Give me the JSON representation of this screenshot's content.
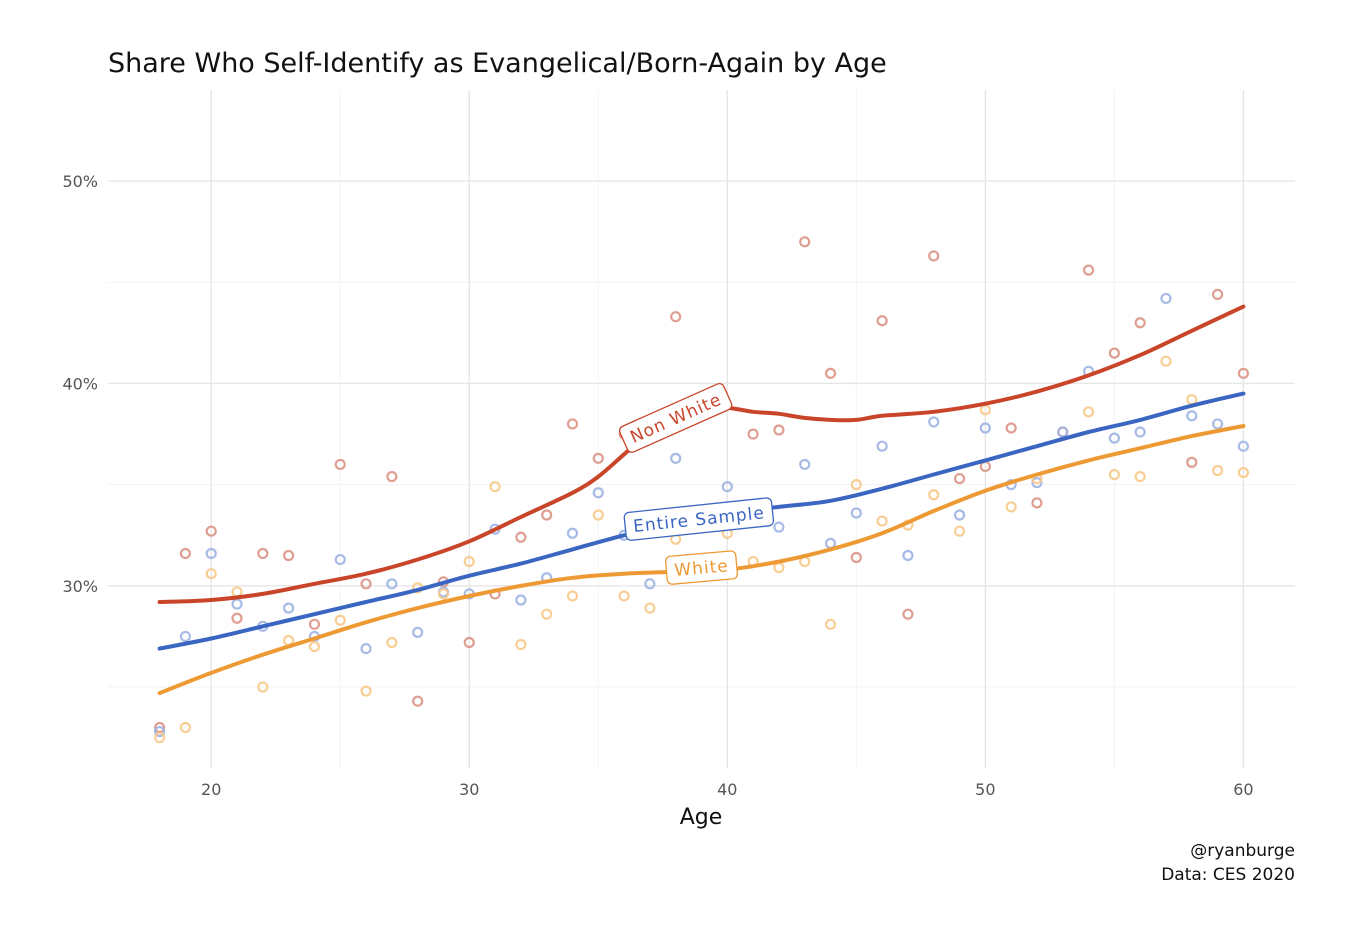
{
  "chart_data": {
    "type": "scatter",
    "title": "Share Who Self-Identify as Evangelical/Born-Again by Age",
    "xlabel": "Age",
    "ylabel": "",
    "xlim": [
      16,
      62
    ],
    "ylim": [
      0.21,
      0.545
    ],
    "x_ticks": [
      20,
      30,
      40,
      50,
      60
    ],
    "x_tick_labels": [
      "20",
      "30",
      "40",
      "50",
      "60"
    ],
    "y_ticks": [
      0.3,
      0.4,
      0.5
    ],
    "y_tick_labels": [
      "30%",
      "40%",
      "50%"
    ],
    "grid": true,
    "legend": "none",
    "caption": [
      "@ryanburge",
      "Data: CES 2020"
    ],
    "series": [
      {
        "name": "Non White",
        "color": "#c9452a",
        "point_color": "#dc9486",
        "points": [
          [
            18,
            0.23
          ],
          [
            19,
            0.316
          ],
          [
            20,
            0.327
          ],
          [
            21,
            0.284
          ],
          [
            22,
            0.316
          ],
          [
            23,
            0.315
          ],
          [
            24,
            0.281
          ],
          [
            25,
            0.36
          ],
          [
            26,
            0.301
          ],
          [
            27,
            0.354
          ],
          [
            28,
            0.243
          ],
          [
            29,
            0.302
          ],
          [
            30,
            0.272
          ],
          [
            31,
            0.296
          ],
          [
            32,
            0.324
          ],
          [
            33,
            0.335
          ],
          [
            34,
            0.38
          ],
          [
            35,
            0.363
          ],
          [
            36,
            0.375
          ],
          [
            38,
            0.433
          ],
          [
            41,
            0.375
          ],
          [
            42,
            0.377
          ],
          [
            43,
            0.47
          ],
          [
            44,
            0.405
          ],
          [
            45,
            0.314
          ],
          [
            46,
            0.431
          ],
          [
            47,
            0.286
          ],
          [
            48,
            0.463
          ],
          [
            49,
            0.353
          ],
          [
            50,
            0.359
          ],
          [
            51,
            0.378
          ],
          [
            52,
            0.341
          ],
          [
            53,
            0.376
          ],
          [
            54,
            0.456
          ],
          [
            55,
            0.415
          ],
          [
            56,
            0.43
          ],
          [
            58,
            0.361
          ],
          [
            59,
            0.444
          ],
          [
            60,
            0.405
          ]
        ],
        "trend": [
          [
            18,
            0.292
          ],
          [
            20,
            0.293
          ],
          [
            22,
            0.296
          ],
          [
            24,
            0.301
          ],
          [
            26,
            0.306
          ],
          [
            28,
            0.313
          ],
          [
            30,
            0.322
          ],
          [
            32,
            0.334
          ],
          [
            34,
            0.346
          ],
          [
            35,
            0.354
          ],
          [
            36,
            0.365
          ],
          [
            37,
            0.376
          ],
          [
            38,
            0.384
          ],
          [
            39,
            0.388
          ],
          [
            40,
            0.388
          ],
          [
            41,
            0.386
          ],
          [
            42,
            0.385
          ],
          [
            43,
            0.383
          ],
          [
            44,
            0.382
          ],
          [
            45,
            0.382
          ],
          [
            46,
            0.384
          ],
          [
            48,
            0.386
          ],
          [
            50,
            0.39
          ],
          [
            52,
            0.396
          ],
          [
            54,
            0.404
          ],
          [
            56,
            0.414
          ],
          [
            58,
            0.426
          ],
          [
            60,
            0.438
          ]
        ]
      },
      {
        "name": "Entire Sample",
        "color": "#3a66c2",
        "point_color": "#9fb3e3",
        "points": [
          [
            18,
            0.228
          ],
          [
            19,
            0.275
          ],
          [
            20,
            0.316
          ],
          [
            21,
            0.291
          ],
          [
            22,
            0.28
          ],
          [
            23,
            0.289
          ],
          [
            24,
            0.275
          ],
          [
            25,
            0.313
          ],
          [
            26,
            0.269
          ],
          [
            27,
            0.301
          ],
          [
            28,
            0.277
          ],
          [
            29,
            0.297
          ],
          [
            30,
            0.296
          ],
          [
            31,
            0.328
          ],
          [
            32,
            0.293
          ],
          [
            33,
            0.304
          ],
          [
            34,
            0.326
          ],
          [
            35,
            0.346
          ],
          [
            36,
            0.325
          ],
          [
            37,
            0.301
          ],
          [
            38,
            0.363
          ],
          [
            40,
            0.349
          ],
          [
            42,
            0.329
          ],
          [
            43,
            0.36
          ],
          [
            44,
            0.321
          ],
          [
            45,
            0.336
          ],
          [
            46,
            0.369
          ],
          [
            47,
            0.315
          ],
          [
            48,
            0.381
          ],
          [
            49,
            0.335
          ],
          [
            50,
            0.378
          ],
          [
            51,
            0.35
          ],
          [
            52,
            0.351
          ],
          [
            53,
            0.376
          ],
          [
            54,
            0.406
          ],
          [
            55,
            0.373
          ],
          [
            56,
            0.376
          ],
          [
            57,
            0.442
          ],
          [
            58,
            0.384
          ],
          [
            59,
            0.38
          ],
          [
            60,
            0.369
          ]
        ],
        "trend": [
          [
            18,
            0.269
          ],
          [
            20,
            0.274
          ],
          [
            22,
            0.28
          ],
          [
            24,
            0.286
          ],
          [
            26,
            0.292
          ],
          [
            28,
            0.298
          ],
          [
            30,
            0.305
          ],
          [
            32,
            0.311
          ],
          [
            34,
            0.318
          ],
          [
            36,
            0.325
          ],
          [
            38,
            0.331
          ],
          [
            40,
            0.336
          ],
          [
            42,
            0.339
          ],
          [
            44,
            0.342
          ],
          [
            46,
            0.348
          ],
          [
            48,
            0.355
          ],
          [
            50,
            0.362
          ],
          [
            52,
            0.369
          ],
          [
            54,
            0.376
          ],
          [
            56,
            0.382
          ],
          [
            58,
            0.389
          ],
          [
            60,
            0.395
          ]
        ]
      },
      {
        "name": "White",
        "color": "#ee9a34",
        "point_color": "#f7c98a",
        "points": [
          [
            18,
            0.225
          ],
          [
            19,
            0.23
          ],
          [
            20,
            0.306
          ],
          [
            21,
            0.297
          ],
          [
            22,
            0.25
          ],
          [
            23,
            0.273
          ],
          [
            24,
            0.27
          ],
          [
            25,
            0.283
          ],
          [
            26,
            0.248
          ],
          [
            27,
            0.272
          ],
          [
            28,
            0.299
          ],
          [
            29,
            0.296
          ],
          [
            30,
            0.312
          ],
          [
            31,
            0.349
          ],
          [
            32,
            0.271
          ],
          [
            33,
            0.286
          ],
          [
            34,
            0.295
          ],
          [
            35,
            0.335
          ],
          [
            36,
            0.295
          ],
          [
            37,
            0.289
          ],
          [
            38,
            0.323
          ],
          [
            40,
            0.326
          ],
          [
            41,
            0.312
          ],
          [
            42,
            0.309
          ],
          [
            43,
            0.312
          ],
          [
            44,
            0.281
          ],
          [
            45,
            0.35
          ],
          [
            46,
            0.332
          ],
          [
            47,
            0.33
          ],
          [
            48,
            0.345
          ],
          [
            49,
            0.327
          ],
          [
            50,
            0.387
          ],
          [
            51,
            0.339
          ],
          [
            52,
            0.353
          ],
          [
            54,
            0.386
          ],
          [
            55,
            0.355
          ],
          [
            56,
            0.354
          ],
          [
            57,
            0.411
          ],
          [
            58,
            0.392
          ],
          [
            59,
            0.357
          ],
          [
            60,
            0.356
          ]
        ],
        "trend": [
          [
            18,
            0.247
          ],
          [
            20,
            0.257
          ],
          [
            22,
            0.266
          ],
          [
            24,
            0.274
          ],
          [
            26,
            0.282
          ],
          [
            28,
            0.289
          ],
          [
            30,
            0.295
          ],
          [
            32,
            0.3
          ],
          [
            34,
            0.304
          ],
          [
            36,
            0.306
          ],
          [
            38,
            0.307
          ],
          [
            40,
            0.308
          ],
          [
            42,
            0.312
          ],
          [
            44,
            0.318
          ],
          [
            46,
            0.326
          ],
          [
            48,
            0.337
          ],
          [
            50,
            0.347
          ],
          [
            52,
            0.355
          ],
          [
            54,
            0.362
          ],
          [
            56,
            0.368
          ],
          [
            58,
            0.374
          ],
          [
            60,
            0.379
          ]
        ]
      }
    ],
    "annotations": [
      {
        "series": "Non White",
        "text": "Non White",
        "x": 38.0,
        "y": 0.383,
        "angle": -24
      },
      {
        "series": "Entire Sample",
        "text": "Entire Sample",
        "x": 38.9,
        "y": 0.333,
        "angle": -6
      },
      {
        "series": "White",
        "text": "White",
        "x": 39.0,
        "y": 0.309,
        "angle": -5
      }
    ]
  }
}
